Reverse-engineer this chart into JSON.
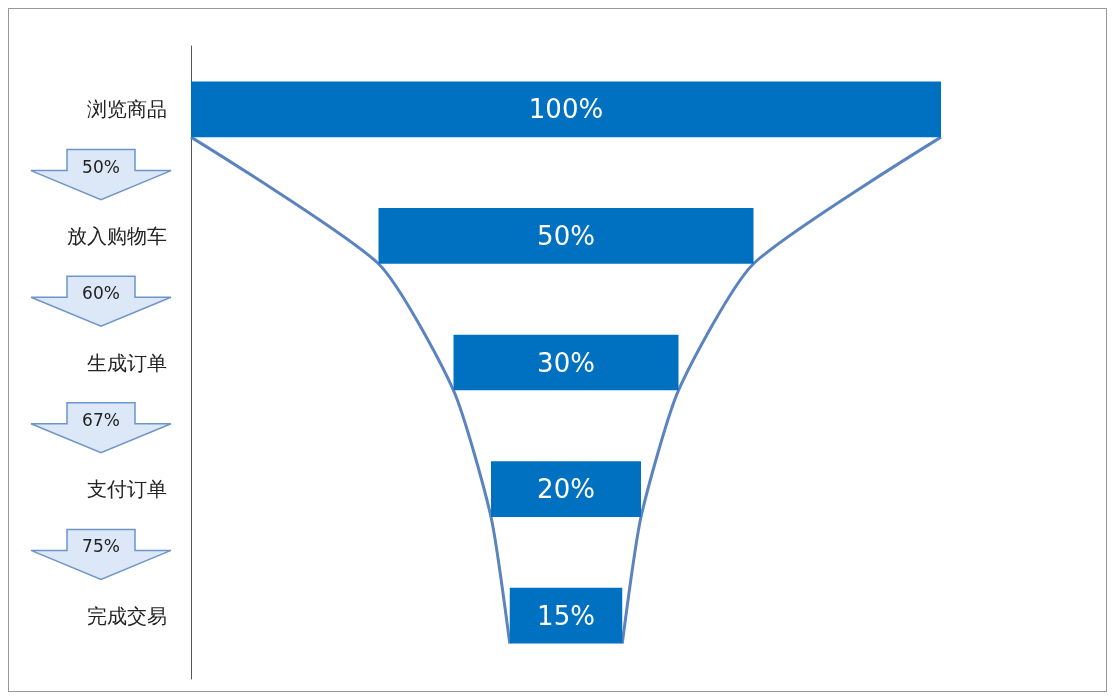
{
  "chart_data": {
    "type": "other",
    "categories": [
      "浏览商品",
      "放入购物车",
      "生成订单",
      "支付订单",
      "完成交易"
    ],
    "values": [
      100,
      50,
      30,
      20,
      15
    ],
    "color": "#0070c0",
    "value_labels": [
      "100%",
      "50%",
      "30%",
      "20%",
      "15%"
    ],
    "annotations": [
      "50%",
      "60%",
      "67%",
      "75%"
    ]
  }
}
